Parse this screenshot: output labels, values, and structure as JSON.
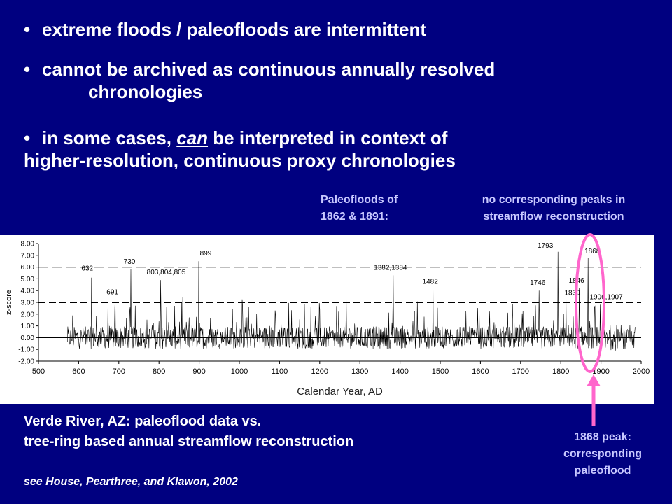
{
  "bullets": [
    "extreme floods / paleofloods are intermittent",
    "cannot be archived as continuous annually resolved",
    "chronologies",
    "in some cases,",
    "can",
    "be interpreted in context of",
    "higher-resolution, continuous proxy chronologies"
  ],
  "bullet_char": "•",
  "header_left": [
    "Paleofloods of",
    "1862 & 1891:"
  ],
  "header_right": [
    "no corresponding peaks in",
    "streamflow reconstruction"
  ],
  "caption": [
    "Verde River, AZ:   paleoflood data vs.",
    "tree-ring based annual streamflow reconstruction"
  ],
  "citation": "see House, Pearthree, and Klawon, 2002",
  "peak_note": [
    "1868 peak:",
    "corresponding",
    "paleoflood"
  ],
  "colors": {
    "background": "#000080",
    "highlight": "#ff66cc",
    "header_text": "#c8c8ff"
  },
  "chart_data": {
    "type": "line",
    "xlabel": "Calendar Year, AD",
    "ylabel": "z-score",
    "xlim": [
      500,
      2000
    ],
    "ylim": [
      -2.0,
      8.0
    ],
    "xticks": [
      "500",
      "600",
      "700",
      "800",
      "900",
      "1000",
      "1100",
      "1200",
      "1300",
      "1400",
      "1500",
      "1600",
      "1700",
      "1800",
      "1900",
      "2000"
    ],
    "yticks": [
      "8.00",
      "7.00",
      "6.00",
      "5.00",
      "4.00",
      "3.00",
      "2.00",
      "1.00",
      "0.00",
      "-1.00",
      "-2.00"
    ],
    "threshold_lines": [
      6.0,
      3.0,
      0.0
    ],
    "series_start": 572,
    "series_end": 1985,
    "peaks": [
      {
        "year": 632,
        "z": 5.1,
        "label": "632"
      },
      {
        "year": 691,
        "z": 3.2,
        "label": "691"
      },
      {
        "year": 730,
        "z": 5.8,
        "label": "730"
      },
      {
        "year": 804,
        "z": 4.9,
        "label": "803,804,805"
      },
      {
        "year": 899,
        "z": 6.5,
        "label": "899"
      },
      {
        "year": 1383,
        "z": 5.3,
        "label": "1382,1384"
      },
      {
        "year": 1482,
        "z": 4.1,
        "label": "1482"
      },
      {
        "year": 1746,
        "z": 4.0,
        "label": "1746"
      },
      {
        "year": 1793,
        "z": 7.3,
        "label": "1793"
      },
      {
        "year": 1839,
        "z": 3.5,
        "label": "1839"
      },
      {
        "year": 1846,
        "z": 4.2,
        "label": "1846"
      },
      {
        "year": 1868,
        "z": 6.8,
        "label": "1868"
      },
      {
        "year": 1906,
        "z": 2.9,
        "label": "1906,1907"
      }
    ]
  }
}
